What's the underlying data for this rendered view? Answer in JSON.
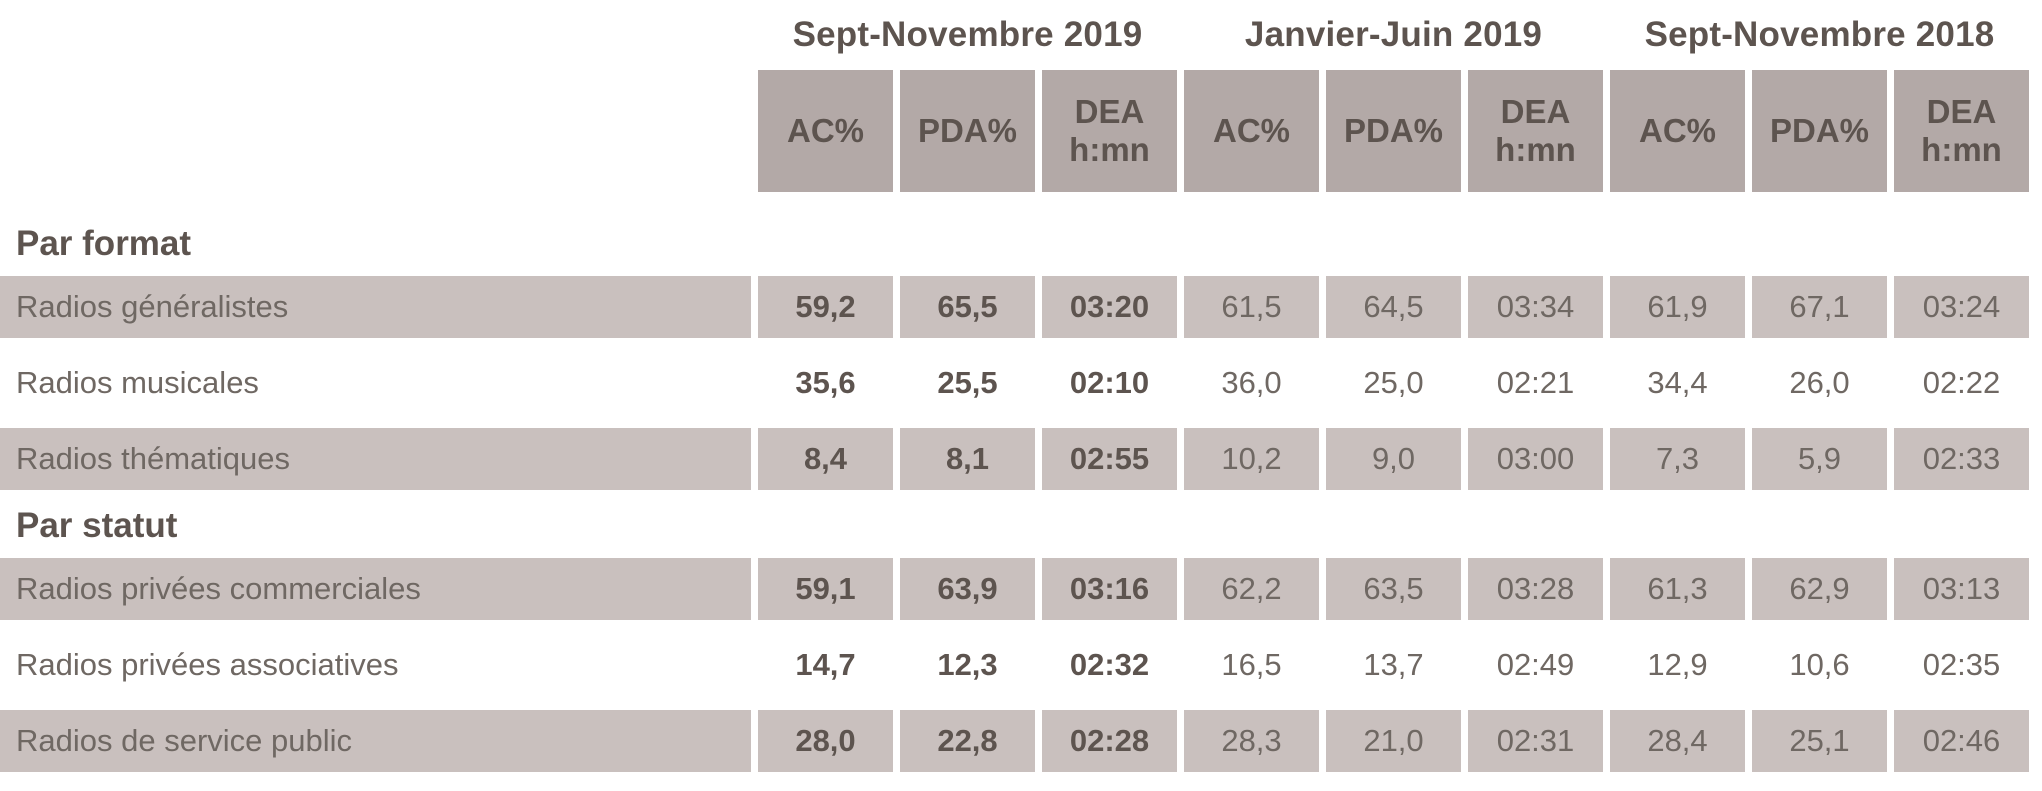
{
  "colors": {
    "header_cell_background": "#b3a9a7",
    "striped_row_background": "#c9c0be",
    "dark_text": "#5d544f",
    "regular_text": "#6f6863",
    "page_background": "#ffffff"
  },
  "column_headers_display": [
    "AC%",
    "PDA%",
    "DEA\nh:mn",
    "AC%",
    "PDA%",
    "DEA\nh:mn",
    "AC%",
    "PDA%",
    "DEA\nh:mn"
  ],
  "chart_data": {
    "type": "table",
    "column_groups": [
      "Sept-Novembre 2019",
      "Janvier-Juin 2019",
      "Sept-Novembre 2018"
    ],
    "columns_per_group": [
      "AC%",
      "PDA%",
      "DEA h:mn"
    ],
    "legend_position": "none",
    "grid": false,
    "sections": [
      {
        "title": "Par format",
        "rows": [
          {
            "label": "Radios généralistes",
            "values": [
              "59,2",
              "65,5",
              "03:20",
              "61,5",
              "64,5",
              "03:34",
              "61,9",
              "67,1",
              "03:24"
            ]
          },
          {
            "label": "Radios musicales",
            "values": [
              "35,6",
              "25,5",
              "02:10",
              "36,0",
              "25,0",
              "02:21",
              "34,4",
              "26,0",
              "02:22"
            ]
          },
          {
            "label": "Radios thématiques",
            "values": [
              "8,4",
              "8,1",
              "02:55",
              "10,2",
              "9,0",
              "03:00",
              "7,3",
              "5,9",
              "02:33"
            ]
          }
        ]
      },
      {
        "title": "Par statut",
        "rows": [
          {
            "label": "Radios privées commerciales",
            "values": [
              "59,1",
              "63,9",
              "03:16",
              "62,2",
              "63,5",
              "03:28",
              "61,3",
              "62,9",
              "03:13"
            ]
          },
          {
            "label": "Radios privées associatives",
            "values": [
              "14,7",
              "12,3",
              "02:32",
              "16,5",
              "13,7",
              "02:49",
              "12,9",
              "10,6",
              "02:35"
            ]
          },
          {
            "label": "Radios de service public",
            "values": [
              "28,0",
              "22,8",
              "02:28",
              "28,3",
              "21,0",
              "02:31",
              "28,4",
              "25,1",
              "02:46"
            ]
          }
        ]
      }
    ]
  }
}
